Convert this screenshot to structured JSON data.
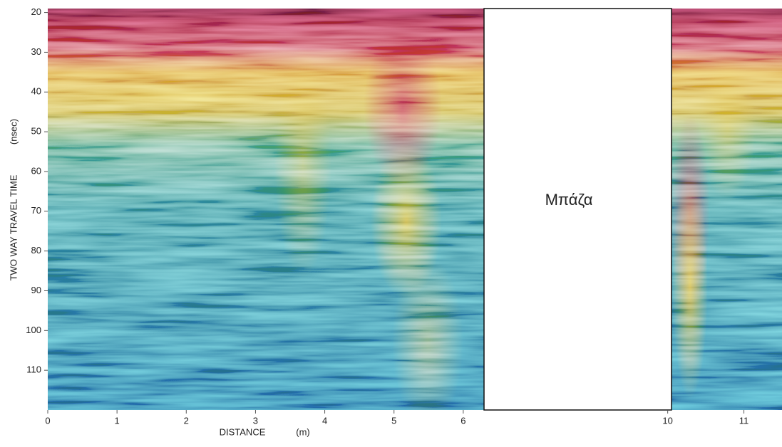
{
  "chart_data": {
    "type": "radargram",
    "y_label": "TWO WAY TRAVEL TIME",
    "y_unit": "(nsec)",
    "x_label": "DISTANCE",
    "x_unit": "(m)",
    "ylim": [
      19,
      120
    ],
    "yticks": [
      20,
      30,
      40,
      50,
      60,
      70,
      80,
      90,
      100,
      110
    ],
    "panels": [
      {
        "xlim": [
          0,
          6.3
        ],
        "xticks": [
          0,
          1,
          2,
          3,
          4,
          5,
          6
        ]
      },
      {
        "xlim": [
          10.05,
          11.5
        ],
        "xticks": [
          10,
          11
        ]
      }
    ],
    "gap_label": "Μπάζα"
  }
}
